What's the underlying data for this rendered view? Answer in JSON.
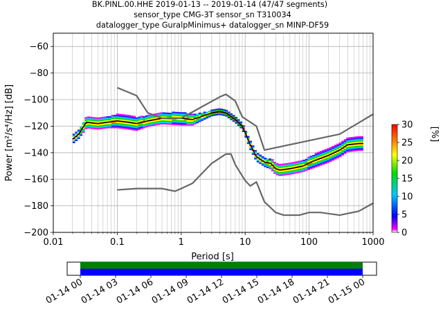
{
  "chart_data": {
    "type": "heatmap",
    "title_lines": [
      "BK.PINL.00.HHE   2019-01-13 -- 2019-01-14  (47/47 segments)",
      "sensor_type CMG-3T sensor_sn T310034",
      "datalogger_type GuralpMinimus+ datalogger_sn MINP-DF59"
    ],
    "xlabel": "Period [s]",
    "ylabel": "Power [m²/s⁴/Hz] [dB]",
    "x_scale": "log",
    "xlim": [
      0.01,
      1000
    ],
    "ylim": [
      -200,
      -50
    ],
    "x_ticks": [
      0.01,
      0.1,
      1,
      10,
      100,
      1000
    ],
    "x_tick_labels": [
      "0.01",
      "0.1",
      "1",
      "10",
      "100",
      "1000"
    ],
    "y_ticks": [
      -200,
      -180,
      -160,
      -140,
      -120,
      -100,
      -80,
      -60
    ],
    "y_tick_labels": [
      "−200",
      "−180",
      "−160",
      "−140",
      "−120",
      "−100",
      "−80",
      "−60"
    ],
    "grid": true,
    "colorbar": {
      "label": "[%]",
      "range": [
        0,
        30
      ],
      "ticks": [
        0,
        5,
        10,
        15,
        20,
        25,
        30
      ],
      "tick_labels": [
        "0",
        "5",
        "10",
        "15",
        "20",
        "25",
        "30"
      ]
    },
    "series": [
      {
        "name": "",
        "color": "#000000",
        "points": [
          [
            0.02,
            -130
          ],
          [
            0.025,
            -126
          ],
          [
            0.03,
            -120
          ],
          [
            0.033,
            -117
          ],
          [
            0.04,
            -117.5
          ],
          [
            0.05,
            -118
          ],
          [
            0.07,
            -117
          ],
          [
            0.1,
            -116
          ],
          [
            0.15,
            -117
          ],
          [
            0.2,
            -118
          ],
          [
            0.3,
            -116
          ],
          [
            0.5,
            -114
          ],
          [
            1,
            -114
          ],
          [
            1.5,
            -115
          ],
          [
            2,
            -113
          ],
          [
            3,
            -110
          ],
          [
            4,
            -109
          ],
          [
            5,
            -110
          ],
          [
            7,
            -115
          ],
          [
            9,
            -120
          ],
          [
            10,
            -125
          ],
          [
            12,
            -134
          ],
          [
            15,
            -143
          ],
          [
            20,
            -147
          ],
          [
            25,
            -148
          ],
          [
            30,
            -152
          ],
          [
            35,
            -153
          ],
          [
            50,
            -152
          ],
          [
            80,
            -150
          ],
          [
            120,
            -146
          ],
          [
            200,
            -142
          ],
          [
            300,
            -138
          ],
          [
            400,
            -134
          ],
          [
            600,
            -133
          ],
          [
            700,
            -133
          ]
        ]
      },
      {
        "name": "",
        "color": "#666666",
        "points": [
          [
            0.1,
            -91
          ],
          [
            0.2,
            -97
          ],
          [
            0.3,
            -110
          ],
          [
            0.5,
            -114
          ],
          [
            1,
            -114
          ],
          [
            2,
            -106
          ],
          [
            4,
            -98
          ],
          [
            5,
            -96
          ],
          [
            7,
            -101
          ],
          [
            9,
            -113
          ],
          [
            15,
            -120
          ],
          [
            20,
            -138
          ],
          [
            300,
            -126
          ],
          [
            1000,
            -111
          ]
        ]
      },
      {
        "name": "",
        "color": "#666666",
        "points": [
          [
            0.1,
            -168
          ],
          [
            0.2,
            -167
          ],
          [
            0.5,
            -167
          ],
          [
            0.8,
            -169
          ],
          [
            1,
            -167
          ],
          [
            1.5,
            -163
          ],
          [
            3,
            -148
          ],
          [
            5,
            -141
          ],
          [
            6,
            -141
          ],
          [
            7,
            -149
          ],
          [
            10,
            -161
          ],
          [
            12,
            -165
          ],
          [
            15,
            -162
          ],
          [
            20,
            -177
          ],
          [
            30,
            -185
          ],
          [
            40,
            -187
          ],
          [
            70,
            -187
          ],
          [
            100,
            -185
          ],
          [
            150,
            -185
          ],
          [
            300,
            -187
          ],
          [
            600,
            -184
          ],
          [
            1000,
            -178
          ]
        ]
      }
    ],
    "density_band": {
      "center": [
        [
          0.02,
          -130
        ],
        [
          0.025,
          -126
        ],
        [
          0.03,
          -120
        ],
        [
          0.033,
          -117
        ],
        [
          0.04,
          -117.5
        ],
        [
          0.05,
          -118
        ],
        [
          0.07,
          -117
        ],
        [
          0.1,
          -116
        ],
        [
          0.15,
          -117
        ],
        [
          0.2,
          -118
        ],
        [
          0.3,
          -116
        ],
        [
          0.5,
          -114
        ],
        [
          1,
          -114
        ],
        [
          1.5,
          -115
        ],
        [
          2,
          -113
        ],
        [
          3,
          -110
        ],
        [
          4,
          -109
        ],
        [
          5,
          -110
        ],
        [
          7,
          -115
        ],
        [
          9,
          -120
        ],
        [
          10,
          -125
        ],
        [
          12,
          -134
        ],
        [
          15,
          -143
        ],
        [
          20,
          -147
        ],
        [
          25,
          -148
        ],
        [
          30,
          -152
        ],
        [
          35,
          -153
        ],
        [
          50,
          -152
        ],
        [
          80,
          -150
        ],
        [
          120,
          -146
        ],
        [
          200,
          -142
        ],
        [
          300,
          -138
        ],
        [
          400,
          -134
        ],
        [
          600,
          -133
        ],
        [
          700,
          -133
        ]
      ],
      "spread_db": [
        3,
        3,
        4,
        4,
        4,
        4,
        4,
        5,
        5,
        5,
        4,
        4,
        5,
        4,
        3,
        2,
        2,
        2,
        2,
        2,
        2,
        3,
        3,
        3,
        4,
        4,
        4,
        4,
        4,
        5,
        5,
        5,
        5,
        5,
        5
      ]
    }
  },
  "timeline": {
    "tick_labels": [
      "01-14 00",
      "01-14 03",
      "01-14 06",
      "01-14 09",
      "01-14 12",
      "01-14 15",
      "01-14 18",
      "01-14 21",
      "01-15 00"
    ],
    "bands": [
      {
        "color": "#008000",
        "coverage": [
          0,
          1
        ]
      },
      {
        "color": "#0000ff",
        "coverage": [
          0,
          1
        ]
      }
    ]
  }
}
